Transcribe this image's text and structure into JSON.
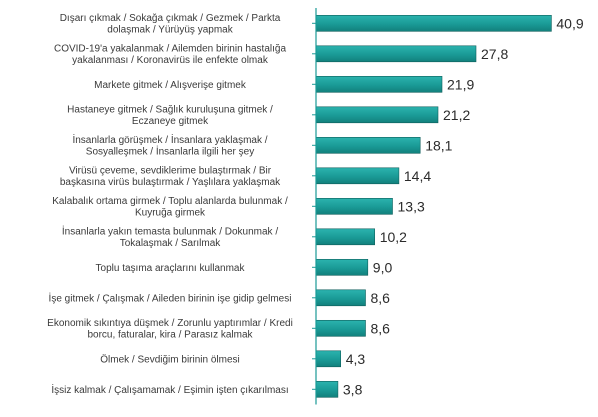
{
  "chart_data": {
    "type": "bar",
    "orientation": "horizontal",
    "title": "",
    "xlabel": "",
    "ylabel": "",
    "grid": false,
    "legend": "none",
    "bar_color": "#1a9a96",
    "bar_edge_color": "#0f5f5c",
    "axis_color": "#1a9a96",
    "xlim": [
      0,
      45
    ],
    "categories": [
      [
        "Dışarı çıkmak / Sokağa çıkmak / Gezmek / Parkta",
        "dolaşmak / Yürüyüş yapmak"
      ],
      [
        "COVID-19'a yakalanmak / Ailemden birinin hastalığa",
        "yakalanması / Koronavirüs ile enfekte olmak"
      ],
      [
        "Markete gitmek / Alışverişe gitmek"
      ],
      [
        "Hastaneye gitmek / Sağlık kuruluşuna gitmek /",
        "Eczaneye gitmek"
      ],
      [
        "İnsanlarla görüşmek / İnsanlara yaklaşmak /",
        "Sosyalleşmek / İnsanlarla ilgili her şey"
      ],
      [
        "Virüsü çeveme, sevdiklerime bulaştırmak / Bir",
        "başkasına virüs bulaştırmak / Yaşlılara yaklaşmak"
      ],
      [
        "Kalabalık ortama girmek / Toplu alanlarda bulunmak /",
        "Kuyruğa girmek"
      ],
      [
        "İnsanlarla yakın temasta bulunmak / Dokunmak /",
        "Tokalaşmak /  Sarılmak"
      ],
      [
        "Toplu taşıma araçlarını kullanmak"
      ],
      [
        "İşe gitmek / Çalışmak / Aileden birinin işe gidip gelmesi"
      ],
      [
        "Ekonomik sıkıntıya düşmek / Zorunlu yaptırımlar / Kredi",
        "borcu, faturalar, kira / Parasız kalmak"
      ],
      [
        "Ölmek / Sevdiğim birinin ölmesi"
      ],
      [
        "İşsiz kalmak / Çalışamamak / Eşimin işten çıkarılması"
      ]
    ],
    "values": [
      40.9,
      27.8,
      21.9,
      21.2,
      18.1,
      14.4,
      13.3,
      10.2,
      9.0,
      8.6,
      8.6,
      4.3,
      3.8
    ],
    "value_labels": [
      "40,9",
      "27,8",
      "21,9",
      "21,2",
      "18,1",
      "14,4",
      "13,3",
      "10,2",
      "9,0",
      "8,6",
      "8,6",
      "4,3",
      "3,8"
    ]
  }
}
